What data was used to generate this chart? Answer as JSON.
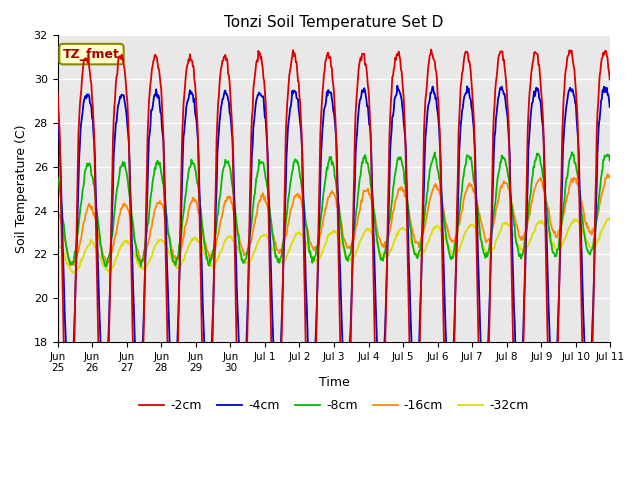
{
  "title": "Tonzi Soil Temperature Set D",
  "ylabel": "Soil Temperature (C)",
  "xlabel": "Time",
  "ylim": [
    18,
    32
  ],
  "yticks": [
    18,
    20,
    22,
    24,
    26,
    28,
    30,
    32
  ],
  "background_color": "#e8e8e8",
  "annotation_text": "TZ_fmet",
  "annotation_color": "#aa0000",
  "annotation_bg": "#ffffcc",
  "annotation_border": "#888800",
  "series": {
    "-2cm": {
      "color": "#dd0000",
      "lw": 1.3
    },
    "-4cm": {
      "color": "#0000cc",
      "lw": 1.3
    },
    "-8cm": {
      "color": "#00bb00",
      "lw": 1.3
    },
    "-16cm": {
      "color": "#ff8800",
      "lw": 1.3
    },
    "-32cm": {
      "color": "#dddd00",
      "lw": 1.3
    }
  },
  "n_days": 16,
  "tick_labels": [
    "Jun 25",
    "Jun 26",
    "Jun 27",
    "Jun 28",
    "Jun 29",
    "Jun 30",
    "Jul 1",
    "Jul 2",
    "Jul 3",
    "Jul 4",
    "Jul 5",
    "Jul 6",
    "Jul 7",
    "Jul 8",
    "Jul 9",
    "Jul 10",
    "Jul 11"
  ]
}
